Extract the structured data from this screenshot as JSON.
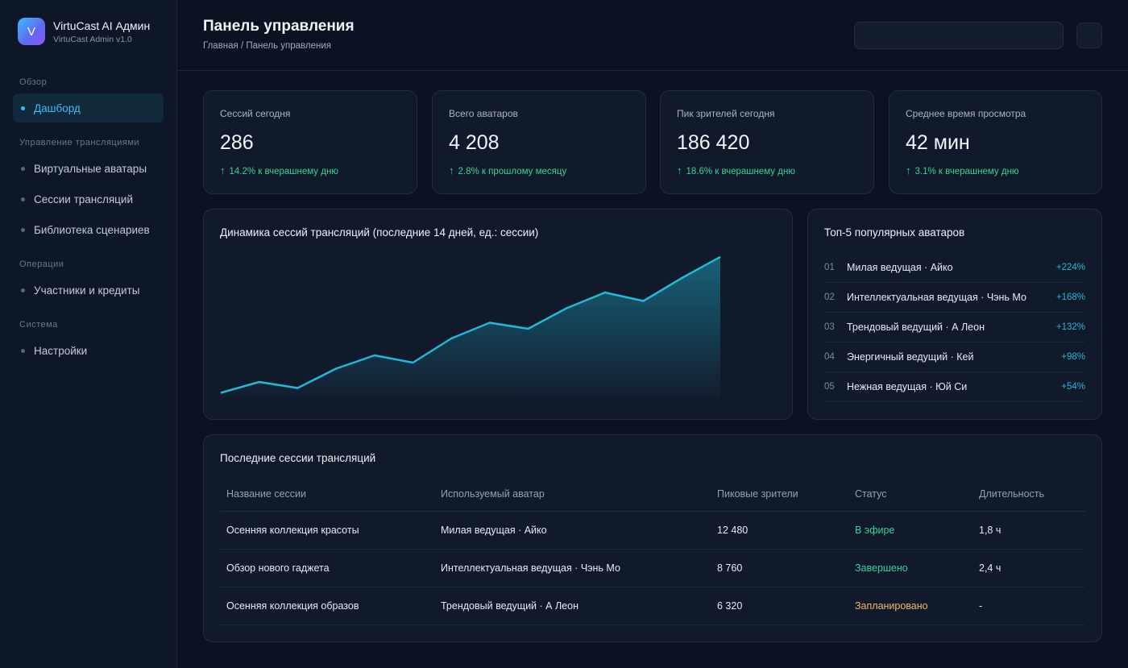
{
  "brand": {
    "logo_letter": "V",
    "title": "VirtuCast AI Админ",
    "subtitle": "VirtuCast Admin v1.0"
  },
  "sidebar": {
    "sections": [
      {
        "label": "Обзор",
        "items": [
          {
            "label": "Дашборд",
            "active": true
          }
        ]
      },
      {
        "label": "Управление трансляциями",
        "items": [
          {
            "label": "Виртуальные аватары"
          },
          {
            "label": "Сессии трансляций"
          },
          {
            "label": "Библиотека сценариев"
          }
        ]
      },
      {
        "label": "Операции",
        "items": [
          {
            "label": "Участники и кредиты"
          }
        ]
      },
      {
        "label": "Система",
        "items": [
          {
            "label": "Настройки"
          }
        ]
      }
    ]
  },
  "header": {
    "title": "Панель управления",
    "breadcrumb": "Главная / Панель управления",
    "search_placeholder": ""
  },
  "stats": [
    {
      "label": "Сессий сегодня",
      "value": "286",
      "delta": "14.2% к вчерашнему дню"
    },
    {
      "label": "Всего аватаров",
      "value": "4 208",
      "delta": "2.8% к прошлому месяцу"
    },
    {
      "label": "Пик зрителей сегодня",
      "value": "186 420",
      "delta": "18.6% к вчерашнему дню"
    },
    {
      "label": "Среднее время просмотра",
      "value": "42 мин",
      "delta": "3.1% к вчерашнему дню"
    }
  ],
  "chart": {
    "title": "Динамика сессий трансляций (последние 14 дней, ед.: сессии)",
    "line_color": "#22b8d8"
  },
  "chart_data": {
    "type": "area",
    "title": "Динамика сессий трансляций (последние 14 дней, ед.: сессии)",
    "x": [
      1,
      2,
      3,
      4,
      5,
      6,
      7,
      8,
      9,
      10,
      11,
      12,
      13,
      14
    ],
    "values": [
      120,
      138,
      128,
      160,
      182,
      170,
      210,
      236,
      226,
      260,
      286,
      272,
      310,
      345
    ],
    "ylim": [
      110,
      350
    ],
    "grid": false,
    "legend": "none"
  },
  "top_avatars": {
    "title": "Топ-5 популярных аватаров",
    "items": [
      {
        "rank": "01",
        "name": "Милая ведущая · Айко",
        "growth": "+224%"
      },
      {
        "rank": "02",
        "name": "Интеллектуальная ведущая · Чэнь Мо",
        "growth": "+168%"
      },
      {
        "rank": "03",
        "name": "Трендовый ведущий · А Леон",
        "growth": "+132%"
      },
      {
        "rank": "04",
        "name": "Энергичный ведущий · Кей",
        "growth": "+98%"
      },
      {
        "rank": "05",
        "name": "Нежная ведущая · Юй Си",
        "growth": "+54%"
      }
    ]
  },
  "sessions": {
    "title": "Последние сессии трансляций",
    "columns": [
      "Название сессии",
      "Используемый аватар",
      "Пиковые зрители",
      "Статус",
      "Длительность"
    ],
    "rows": [
      {
        "name": "Осенняя коллекция красоты",
        "avatar": "Милая ведущая · Айко",
        "peak": "12 480",
        "status": "В эфире",
        "duration": "1,8 ч"
      },
      {
        "name": "Обзор нового гаджета",
        "avatar": "Интеллектуальная ведущая · Чэнь Мо",
        "peak": "8 760",
        "status": "Завершено",
        "duration": "2,4 ч"
      },
      {
        "name": "Осенняя коллекция образов",
        "avatar": "Трендовый ведущий · А Леон",
        "peak": "6 320",
        "status": "Запланировано",
        "duration": "-"
      }
    ]
  }
}
